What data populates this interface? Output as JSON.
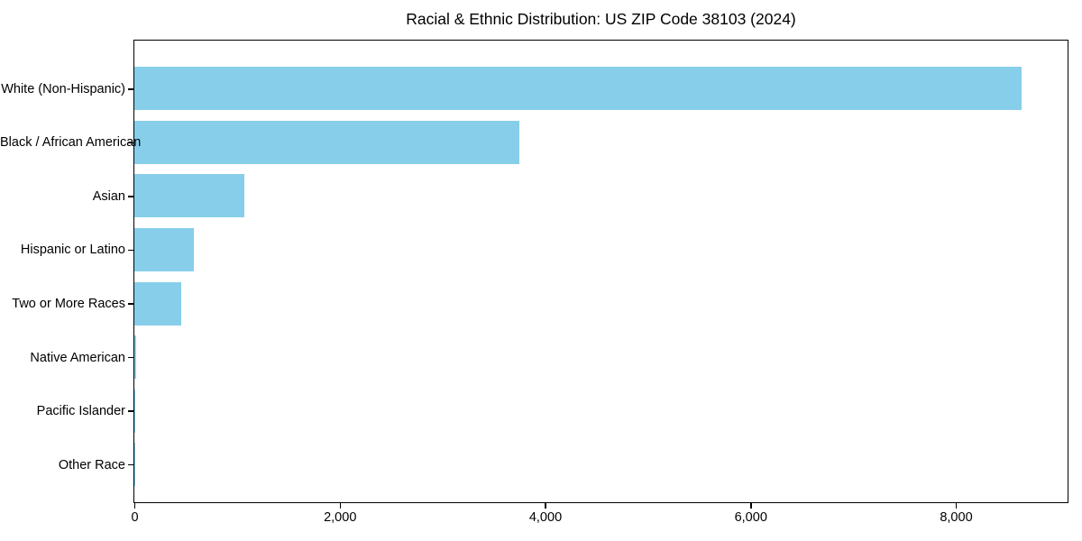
{
  "chart_data": {
    "type": "bar",
    "orientation": "horizontal",
    "title": "Racial & Ethnic Distribution: US ZIP Code 38103 (2024)",
    "categories": [
      "White (Non-Hispanic)",
      "Black / African American",
      "Asian",
      "Hispanic or Latino",
      "Two or More Races",
      "Native American",
      "Pacific Islander",
      "Other Race"
    ],
    "values": [
      8640,
      3750,
      1070,
      580,
      460,
      15,
      5,
      3
    ],
    "xlabel": "",
    "ylabel": "",
    "x_ticks": [
      0,
      2000,
      4000,
      6000,
      8000
    ],
    "x_tick_labels": [
      "0",
      "2,000",
      "4,000",
      "6,000",
      "8,000"
    ],
    "xlim": [
      0,
      9080
    ],
    "grid": false,
    "legend": null,
    "bar_color": "#87CEEB",
    "frame_color": "#000000",
    "text_color": "#000000",
    "background_color": "#ffffff"
  }
}
